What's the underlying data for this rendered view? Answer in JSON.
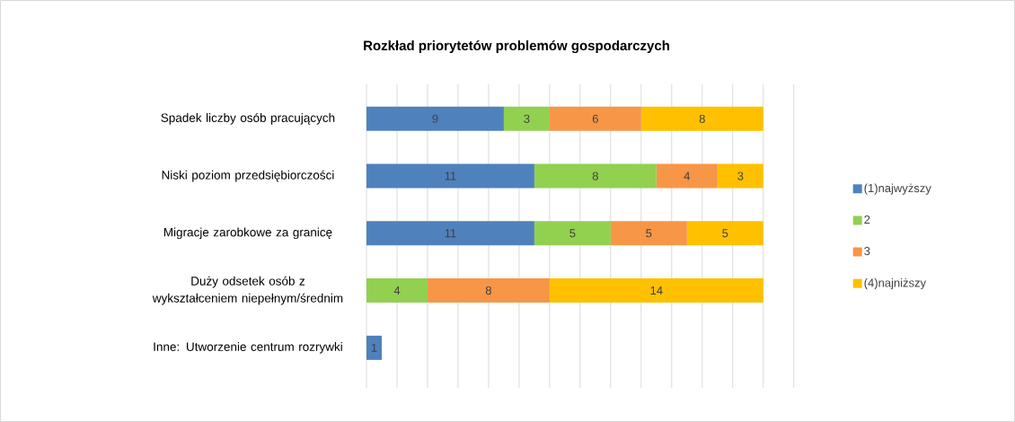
{
  "chart_data": {
    "type": "bar",
    "orientation": "horizontal",
    "stacked": true,
    "title": "Rozkład priorytetów problemów gospodarczych",
    "categories": [
      "Spadek liczby osób pracujących",
      "Niski poziom przedsiębiorczości",
      "Migracje zarobkowe za granicę",
      "Duży odsetek osób z wykształceniem niepełnym/średnim",
      "Inne: Utworzenie centrum rozrywki"
    ],
    "series": [
      {
        "name": "(1)najwyższy",
        "color": "#4f81bd",
        "values": [
          9,
          11,
          11,
          null,
          1
        ]
      },
      {
        "name": "2",
        "color": "#92d050",
        "values": [
          3,
          8,
          5,
          4,
          null
        ]
      },
      {
        "name": "3",
        "color": "#f79646",
        "values": [
          6,
          4,
          5,
          8,
          null
        ]
      },
      {
        "name": "(4)najniższy",
        "color": "#ffc000",
        "values": [
          8,
          3,
          5,
          14,
          null
        ]
      }
    ],
    "tick_labels": "y",
    "grid": "x",
    "legend": "right",
    "data_labels": true
  }
}
